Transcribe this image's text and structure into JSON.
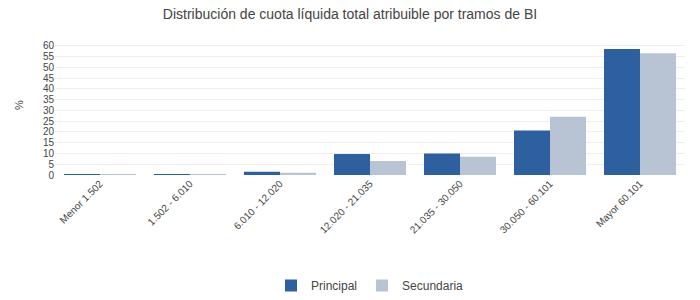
{
  "chart_data": {
    "type": "bar",
    "title": "Distribución de cuota líquida total atribuible por tramos de BI",
    "categories": [
      "Menor 1.502",
      "1.502 - 6.010",
      "6.010 - 12.020",
      "12.020 - 21.035",
      "21.035 - 30.050",
      "30.050 - 60.101",
      "Mayor 60.101"
    ],
    "series": [
      {
        "name": "Principal",
        "color": "#2E5F9E",
        "values": [
          0.2,
          0.3,
          1.5,
          9.7,
          10.0,
          20.7,
          58.5
        ]
      },
      {
        "name": "Secundaria",
        "color": "#B8C4D4",
        "values": [
          0.2,
          0.3,
          1.0,
          6.5,
          8.5,
          27.0,
          56.5
        ]
      }
    ],
    "ylabel": "%",
    "ylim": [
      0,
      65
    ],
    "yticks": [
      0,
      5,
      10,
      15,
      20,
      25,
      30,
      35,
      40,
      45,
      50,
      55,
      60
    ],
    "grid": true,
    "legend": "bottom"
  }
}
